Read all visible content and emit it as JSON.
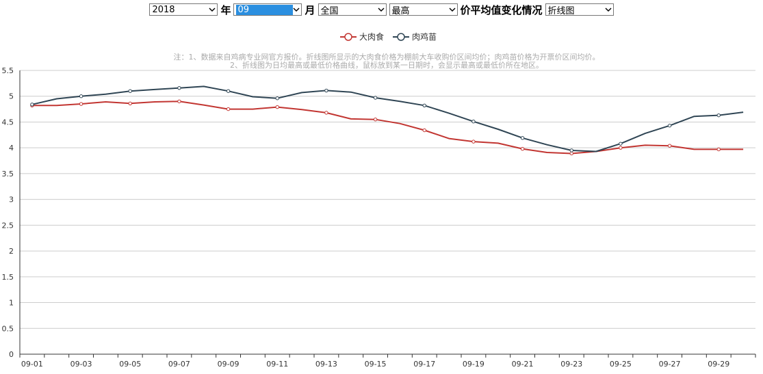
{
  "controls": {
    "year": "2018",
    "year_suffix": "年",
    "month": "09",
    "month_suffix": "月",
    "region": "全国",
    "stat": "最高",
    "title_text": "价平均值变化情况",
    "chart_type": "折线图"
  },
  "colors": {
    "series_1": "#c23531",
    "series_2": "#2f4554",
    "grid": "#cccccc",
    "axis": "#333333",
    "note": "#aaaaaa"
  },
  "chart_data": {
    "type": "line",
    "note_lines": [
      "注：1、数据来自鸡病专业网官方报价。折线图所显示的大肉食价格为棚前大车收购价区间均价；肉鸡苗价格为开票价区间均价。",
      "2、折线图为日均最高或最低价格曲线，鼠标放到某一日期时，会显示最高或最低价所在地区。"
    ],
    "legend_position": "top-center",
    "grid": true,
    "ylim": [
      0,
      5.5
    ],
    "y_ticks": [
      "0",
      "0.5",
      "1",
      "1.5",
      "2",
      "2.5",
      "3",
      "3.5",
      "4",
      "4.5",
      "5",
      "5.5"
    ],
    "x": [
      "09-01",
      "09-02",
      "09-03",
      "09-04",
      "09-05",
      "09-06",
      "09-07",
      "09-08",
      "09-09",
      "09-10",
      "09-11",
      "09-12",
      "09-13",
      "09-14",
      "09-15",
      "09-16",
      "09-17",
      "09-18",
      "09-19",
      "09-20",
      "09-21",
      "09-22",
      "09-23",
      "09-24",
      "09-25",
      "09-26",
      "09-27",
      "09-28",
      "09-29",
      "09-30"
    ],
    "x_tick_labels": [
      "09-01",
      "09-03",
      "09-05",
      "09-07",
      "09-09",
      "09-11",
      "09-13",
      "09-15",
      "09-17",
      "09-19",
      "09-21",
      "09-23",
      "09-25",
      "09-27",
      "09-29"
    ],
    "series": [
      {
        "name": "大肉食",
        "values": [
          4.82,
          4.82,
          4.85,
          4.89,
          4.86,
          4.89,
          4.9,
          4.83,
          4.75,
          4.75,
          4.79,
          4.74,
          4.68,
          4.56,
          4.55,
          4.47,
          4.34,
          4.18,
          4.12,
          4.09,
          3.98,
          3.91,
          3.89,
          3.93,
          4.0,
          4.05,
          4.04,
          3.97,
          3.97,
          3.97
        ]
      },
      {
        "name": "肉鸡苗",
        "values": [
          4.84,
          4.95,
          5.0,
          5.04,
          5.1,
          5.13,
          5.16,
          5.19,
          5.1,
          4.99,
          4.96,
          5.07,
          5.11,
          5.08,
          4.97,
          4.9,
          4.82,
          4.67,
          4.51,
          4.36,
          4.19,
          4.06,
          3.95,
          3.93,
          4.08,
          4.28,
          4.43,
          4.61,
          4.63,
          4.69
        ]
      }
    ]
  }
}
